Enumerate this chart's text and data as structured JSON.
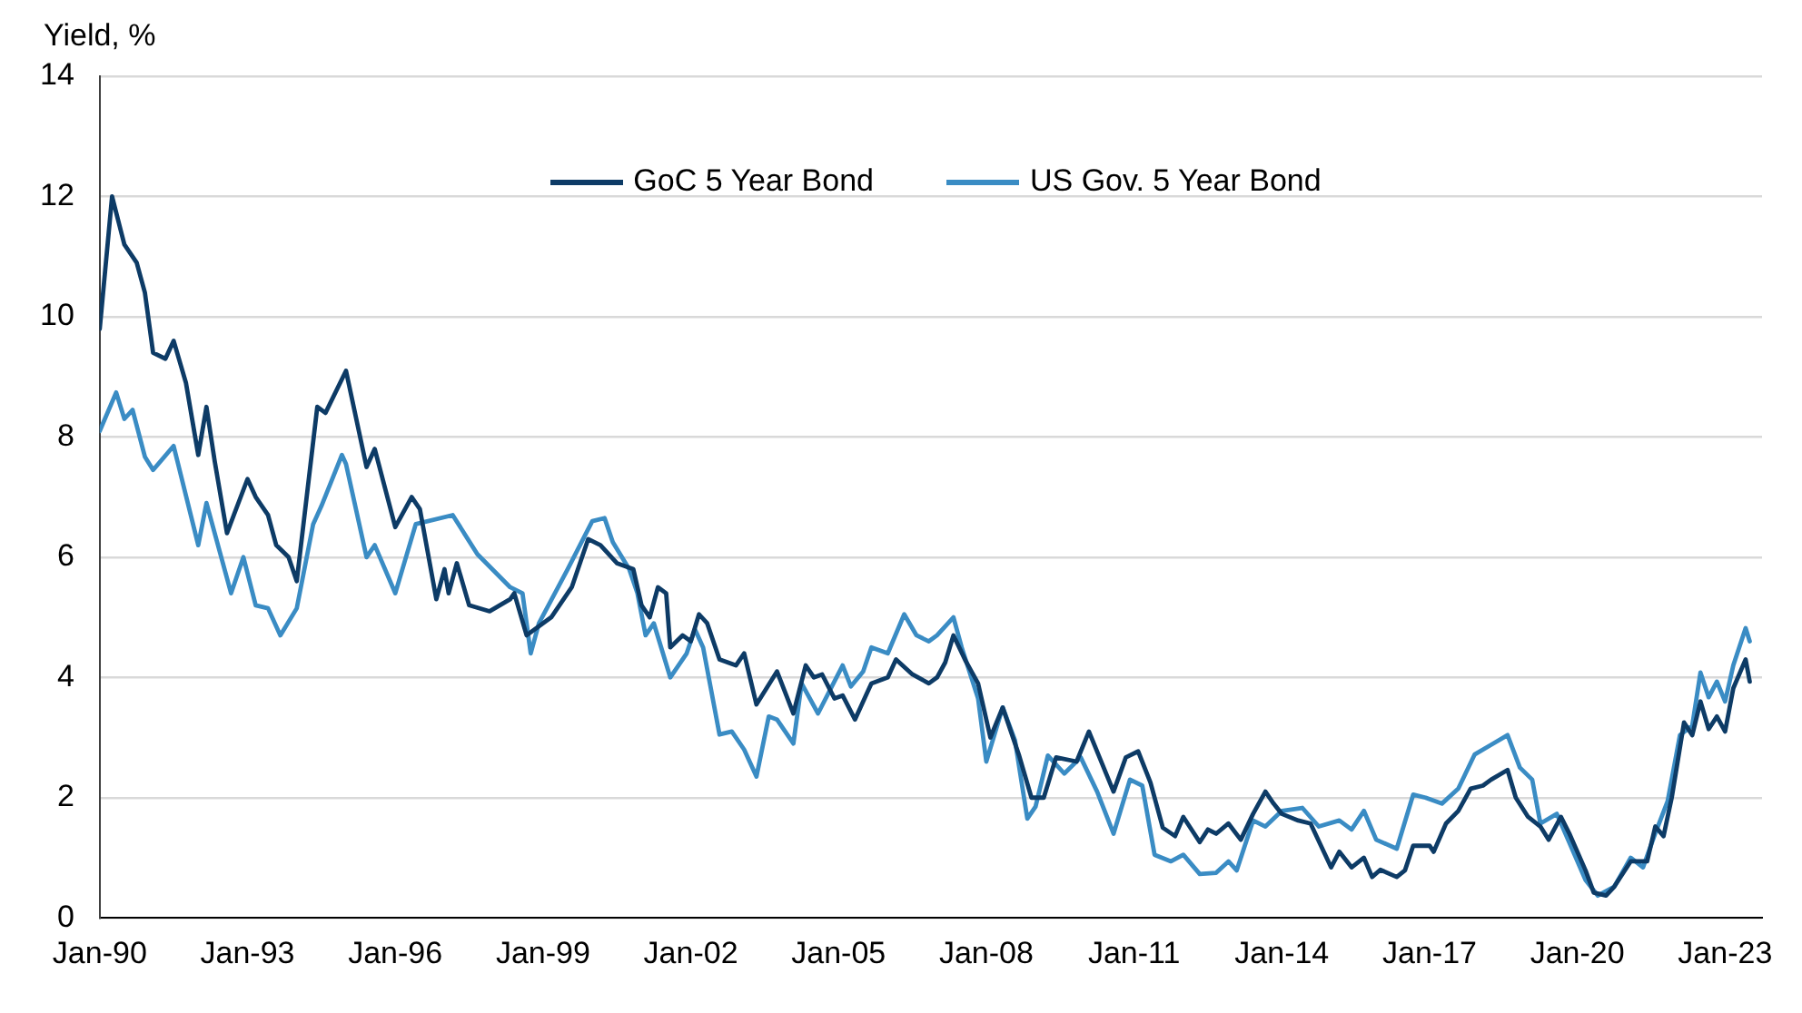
{
  "chart_data": {
    "type": "line",
    "ylabel": "Yield, %",
    "x": [
      "1990-01",
      "1990-04",
      "1990-07",
      "1990-10",
      "1990-12",
      "1991-02",
      "1991-05",
      "1991-07",
      "1991-10",
      "1992-01",
      "1992-03",
      "1992-05",
      "1992-08",
      "1993-01",
      "1993-03",
      "1993-06",
      "1993-08",
      "1993-11",
      "1994-01",
      "1994-06",
      "1994-08",
      "1995-01",
      "1995-06",
      "1995-08",
      "1996-01",
      "1996-05",
      "1996-07",
      "1996-11",
      "1997-01",
      "1997-02",
      "1997-04",
      "1997-07",
      "1997-12",
      "1998-05",
      "1998-06",
      "1998-09",
      "1999-03",
      "1999-08",
      "1999-12",
      "2000-03",
      "2000-07",
      "2000-11",
      "2001-01",
      "2001-03",
      "2001-05",
      "2001-07",
      "2001-08",
      "2001-11",
      "2002-01",
      "2002-03",
      "2002-05",
      "2002-08",
      "2002-12",
      "2003-02",
      "2003-05",
      "2003-10",
      "2004-02",
      "2004-05",
      "2004-07",
      "2004-09",
      "2004-12",
      "2005-02",
      "2005-05",
      "2005-09",
      "2006-01",
      "2006-03",
      "2006-07",
      "2006-11",
      "2007-01",
      "2007-03",
      "2007-05",
      "2007-08",
      "2007-11",
      "2008-02",
      "2008-05",
      "2008-09",
      "2008-12",
      "2009-03",
      "2009-06",
      "2009-11",
      "2010-02",
      "2010-08",
      "2010-11",
      "2011-02",
      "2011-05",
      "2011-08",
      "2011-11",
      "2012-01",
      "2012-05",
      "2012-07",
      "2012-09",
      "2012-12",
      "2013-03",
      "2013-06",
      "2013-09",
      "2013-11",
      "2014-01",
      "2014-05",
      "2014-08",
      "2015-01",
      "2015-03",
      "2015-06",
      "2015-09",
      "2015-11",
      "2016-01",
      "2016-05",
      "2016-07",
      "2016-09",
      "2017-01",
      "2017-02",
      "2017-05",
      "2017-08",
      "2017-11",
      "2018-02",
      "2018-04",
      "2018-08",
      "2018-10",
      "2019-01",
      "2019-04",
      "2019-06",
      "2019-09",
      "2019-11",
      "2020-03",
      "2020-05",
      "2020-08",
      "2020-10",
      "2021-02",
      "2021-04",
      "2021-06",
      "2021-08",
      "2021-10",
      "2021-12",
      "2022-03",
      "2022-05",
      "2022-07",
      "2022-09",
      "2022-11",
      "2023-01",
      "2023-03",
      "2023-06",
      "2023-07"
    ],
    "xlim": [
      "1990-01",
      "2023-10"
    ],
    "xticks": [
      {
        "value": "1990-01",
        "label": "Jan-90"
      },
      {
        "value": "1993-01",
        "label": "Jan-93"
      },
      {
        "value": "1996-01",
        "label": "Jan-96"
      },
      {
        "value": "1999-01",
        "label": "Jan-99"
      },
      {
        "value": "2002-01",
        "label": "Jan-02"
      },
      {
        "value": "2005-01",
        "label": "Jan-05"
      },
      {
        "value": "2008-01",
        "label": "Jan-08"
      },
      {
        "value": "2011-01",
        "label": "Jan-11"
      },
      {
        "value": "2014-01",
        "label": "Jan-14"
      },
      {
        "value": "2017-01",
        "label": "Jan-17"
      },
      {
        "value": "2020-01",
        "label": "Jan-20"
      },
      {
        "value": "2023-01",
        "label": "Jan-23"
      }
    ],
    "ylim": [
      0,
      14
    ],
    "yticks": [
      0,
      2,
      4,
      6,
      8,
      10,
      12,
      14
    ],
    "grid": "y",
    "legend": "top",
    "marker": "none",
    "series": [
      {
        "name": "GoC 5 Year Bond",
        "color": "#0d3b66",
        "values": [
          9.8,
          12.0,
          11.2,
          10.9,
          10.4,
          9.4,
          9.3,
          9.6,
          8.9,
          7.7,
          8.5,
          7.6,
          6.4,
          7.3,
          7.0,
          6.7,
          6.2,
          6.0,
          5.6,
          8.5,
          8.4,
          9.1,
          7.5,
          7.8,
          6.5,
          7.0,
          6.8,
          5.3,
          5.8,
          5.4,
          5.9,
          5.2,
          5.1,
          5.3,
          5.4,
          4.7,
          5.0,
          5.5,
          6.3,
          6.2,
          5.9,
          5.8,
          5.2,
          5.0,
          5.5,
          5.4,
          4.5,
          4.7,
          4.6,
          5.05,
          4.9,
          4.3,
          4.2,
          4.4,
          3.55,
          4.1,
          3.4,
          4.2,
          4.0,
          4.05,
          3.65,
          3.7,
          3.3,
          3.9,
          4.0,
          4.3,
          4.05,
          3.9,
          4.0,
          4.25,
          4.7,
          4.27,
          3.9,
          3.0,
          3.5,
          2.7,
          2.0,
          2.0,
          2.67,
          2.6,
          3.1,
          2.1,
          2.67,
          2.77,
          2.25,
          1.5,
          1.36,
          1.68,
          1.26,
          1.47,
          1.4,
          1.57,
          1.3,
          1.73,
          2.1,
          1.9,
          1.73,
          1.62,
          1.57,
          0.84,
          1.1,
          0.84,
          1.0,
          0.68,
          0.8,
          0.68,
          0.79,
          1.2,
          1.2,
          1.1,
          1.57,
          1.78,
          2.15,
          2.2,
          2.3,
          2.46,
          2.0,
          1.68,
          1.52,
          1.3,
          1.68,
          1.41,
          0.79,
          0.42,
          0.37,
          0.52,
          0.94,
          0.94,
          0.94,
          1.52,
          1.36,
          2.0,
          3.25,
          3.04,
          3.6,
          3.14,
          3.35,
          3.1,
          3.82,
          4.3,
          3.93
        ]
      },
      {
        "name": "US Gov. 5 Year Bond",
        "color": "#3a8cc4",
        "x": [
          "1990-01",
          "1990-05",
          "1990-07",
          "1990-09",
          "1990-12",
          "1991-02",
          "1991-07",
          "1992-01",
          "1992-03",
          "1992-09",
          "1992-12",
          "1993-03",
          "1993-06",
          "1993-09",
          "1994-01",
          "1994-05",
          "1994-07",
          "1994-12",
          "1995-01",
          "1995-06",
          "1995-08",
          "1996-01",
          "1996-06",
          "1997-03",
          "1997-09",
          "1998-05",
          "1998-08",
          "1998-10",
          "1998-12",
          "1999-07",
          "2000-01",
          "2000-04",
          "2000-06",
          "2000-10",
          "2000-12",
          "2001-02",
          "2001-04",
          "2001-08",
          "2001-12",
          "2002-02",
          "2002-04",
          "2002-08",
          "2002-11",
          "2003-02",
          "2003-05",
          "2003-08",
          "2003-10",
          "2004-02",
          "2004-04",
          "2004-08",
          "2005-02",
          "2005-04",
          "2005-07",
          "2005-09",
          "2006-01",
          "2006-05",
          "2006-08",
          "2006-11",
          "2007-01",
          "2007-05",
          "2007-07",
          "2007-11",
          "2008-01",
          "2008-05",
          "2008-08",
          "2008-11",
          "2009-01",
          "2009-04",
          "2009-08",
          "2009-12",
          "2010-04",
          "2010-08",
          "2010-12",
          "2011-03",
          "2011-06",
          "2011-10",
          "2012-01",
          "2012-05",
          "2012-09",
          "2012-12",
          "2013-02",
          "2013-06",
          "2013-09",
          "2014-01",
          "2014-06",
          "2014-10",
          "2015-03",
          "2015-06",
          "2015-09",
          "2015-12",
          "2016-05",
          "2016-09",
          "2016-12",
          "2017-04",
          "2017-08",
          "2017-12",
          "2018-04",
          "2018-08",
          "2018-11",
          "2019-02",
          "2019-04",
          "2019-08",
          "2019-11",
          "2020-03",
          "2020-06",
          "2020-10",
          "2021-02",
          "2021-05",
          "2021-08",
          "2021-11",
          "2022-02",
          "2022-05",
          "2022-07",
          "2022-09",
          "2022-11",
          "2023-01",
          "2023-03",
          "2023-06",
          "2023-07"
        ],
        "values": [
          8.1,
          8.74,
          8.3,
          8.45,
          7.67,
          7.45,
          7.85,
          6.2,
          6.9,
          5.4,
          6.0,
          5.2,
          5.15,
          4.7,
          5.15,
          6.55,
          6.85,
          7.7,
          7.55,
          6.0,
          6.2,
          5.4,
          6.55,
          6.7,
          6.05,
          5.5,
          5.4,
          4.4,
          4.9,
          5.8,
          6.6,
          6.65,
          6.25,
          5.8,
          5.4,
          4.7,
          4.9,
          4.0,
          4.4,
          4.8,
          4.5,
          3.05,
          3.1,
          2.8,
          2.35,
          3.35,
          3.3,
          2.9,
          3.9,
          3.4,
          4.2,
          3.85,
          4.1,
          4.5,
          4.4,
          5.05,
          4.7,
          4.6,
          4.7,
          5.0,
          4.5,
          3.65,
          2.6,
          3.5,
          2.95,
          1.65,
          1.85,
          2.7,
          2.4,
          2.67,
          2.1,
          1.4,
          2.3,
          2.2,
          1.05,
          0.94,
          1.05,
          0.73,
          0.75,
          0.94,
          0.79,
          1.62,
          1.52,
          1.78,
          1.83,
          1.52,
          1.62,
          1.47,
          1.78,
          1.3,
          1.15,
          2.05,
          2.0,
          1.9,
          2.15,
          2.72,
          2.88,
          3.04,
          2.5,
          2.3,
          1.57,
          1.73,
          1.26,
          0.63,
          0.37,
          0.52,
          1.0,
          0.84,
          1.41,
          1.94,
          3.04,
          3.2,
          4.08,
          3.67,
          3.93,
          3.6,
          4.2,
          4.82,
          4.6
        ]
      }
    ]
  }
}
